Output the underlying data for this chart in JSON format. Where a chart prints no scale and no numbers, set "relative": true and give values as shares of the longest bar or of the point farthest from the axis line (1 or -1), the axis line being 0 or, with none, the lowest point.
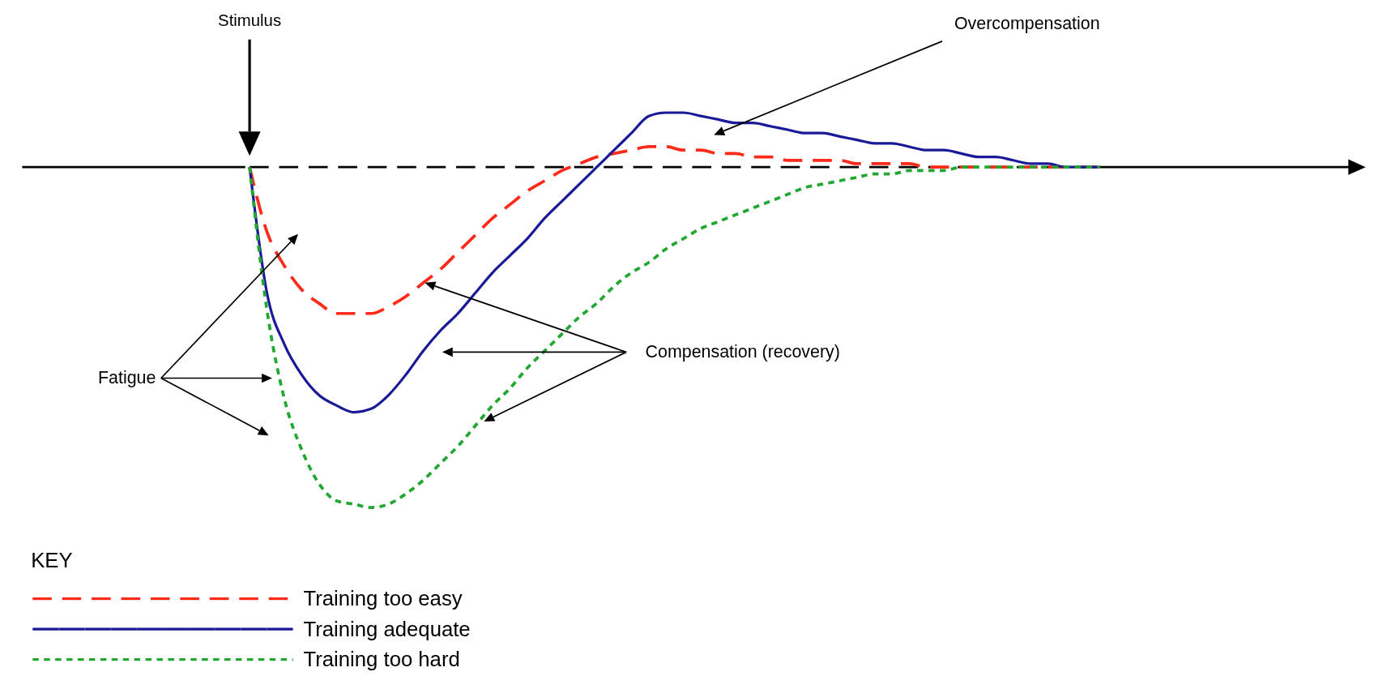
{
  "chart_data": {
    "type": "line",
    "relative": true,
    "categories": [
      null,
      null,
      null,
      null,
      null,
      null,
      null,
      null,
      null,
      null,
      null,
      null,
      null,
      null,
      null,
      null,
      null,
      null,
      null,
      null,
      null,
      null,
      null,
      null,
      null,
      null,
      null,
      null,
      null,
      null,
      null,
      null,
      null,
      null,
      null,
      null,
      null,
      null,
      null,
      null,
      null,
      null,
      null,
      null,
      null,
      null,
      null,
      null,
      null,
      null
    ],
    "series": [
      {
        "name": "Training too easy",
        "color": "#ff2a1a",
        "line_style": "dashed",
        "values": [
          0,
          -0.19,
          -0.29,
          -0.36,
          -0.4,
          -0.43,
          -0.43,
          -0.43,
          -0.41,
          -0.38,
          -0.34,
          -0.3,
          -0.25,
          -0.2,
          -0.15,
          -0.11,
          -0.07,
          -0.04,
          -0.01,
          0.01,
          0.03,
          0.04,
          0.05,
          0.06,
          0.06,
          0.05,
          0.05,
          0.04,
          0.04,
          0.03,
          0.03,
          0.02,
          0.02,
          0.02,
          0.02,
          0.01,
          0.01,
          0.01,
          0.01,
          0,
          0,
          0,
          0,
          0,
          0,
          0,
          0,
          0,
          0,
          0
        ]
      },
      {
        "name": "Training adequate",
        "color": "#1a1a99",
        "line_style": "solid",
        "values": [
          0,
          -0.37,
          -0.52,
          -0.61,
          -0.67,
          -0.7,
          -0.72,
          -0.71,
          -0.67,
          -0.61,
          -0.54,
          -0.48,
          -0.43,
          -0.37,
          -0.31,
          -0.26,
          -0.21,
          -0.15,
          -0.1,
          -0.05,
          0,
          0.05,
          0.1,
          0.15,
          0.16,
          0.16,
          0.15,
          0.14,
          0.13,
          0.13,
          0.12,
          0.11,
          0.1,
          0.1,
          0.09,
          0.08,
          0.07,
          0.07,
          0.06,
          0.05,
          0.05,
          0.04,
          0.03,
          0.03,
          0.02,
          0.01,
          0.01,
          0,
          0,
          0
        ]
      },
      {
        "name": "Training too hard",
        "color": "#22a832",
        "line_style": "dotted",
        "values": [
          0,
          -0.42,
          -0.68,
          -0.83,
          -0.93,
          -0.98,
          -0.99,
          -1,
          -0.99,
          -0.96,
          -0.92,
          -0.87,
          -0.82,
          -0.76,
          -0.7,
          -0.65,
          -0.59,
          -0.54,
          -0.49,
          -0.44,
          -0.4,
          -0.35,
          -0.31,
          -0.28,
          -0.24,
          -0.21,
          -0.18,
          -0.16,
          -0.14,
          -0.12,
          -0.1,
          -0.08,
          -0.06,
          -0.05,
          -0.04,
          -0.03,
          -0.02,
          -0.02,
          -0.01,
          -0.01,
          -0.01,
          0,
          0,
          0,
          0,
          0,
          0,
          0,
          0,
          0
        ]
      }
    ],
    "ref_lines": [
      {
        "axis": "y",
        "value": 0,
        "color": "#000000",
        "line_style": "dashed"
      }
    ],
    "annotations": [
      "Stimulus",
      "Overcompensation",
      "Fatigue",
      "Compensation (recovery)"
    ],
    "legend": "bottom left",
    "legend_title": "KEY"
  }
}
